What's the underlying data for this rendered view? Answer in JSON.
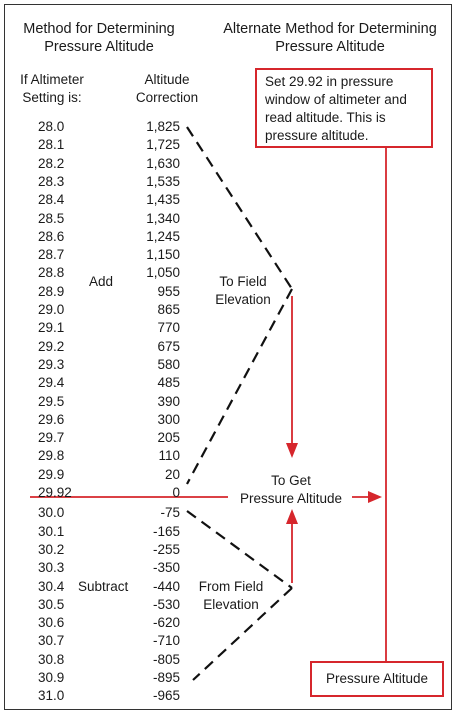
{
  "header": {
    "left_title_line1": "Method for Determining",
    "left_title_line2": "Pressure Altitude",
    "right_title_line1": "Alternate Method for Determining",
    "right_title_line2": "Pressure Altitude"
  },
  "columns": {
    "setting_line1": "If Altimeter",
    "setting_line2": "Setting is:",
    "correction_line1": "Altitude",
    "correction_line2": "Correction"
  },
  "rows": [
    {
      "setting": "28.0",
      "correction": "1,825"
    },
    {
      "setting": "28.1",
      "correction": "1,725"
    },
    {
      "setting": "28.2",
      "correction": "1,630"
    },
    {
      "setting": "28.3",
      "correction": "1,535"
    },
    {
      "setting": "28.4",
      "correction": "1,435"
    },
    {
      "setting": "28.5",
      "correction": "1,340"
    },
    {
      "setting": "28.6",
      "correction": "1,245"
    },
    {
      "setting": "28.7",
      "correction": "1,150"
    },
    {
      "setting": "28.8",
      "correction": "1,050"
    },
    {
      "setting": "28.9",
      "correction": "955"
    },
    {
      "setting": "29.0",
      "correction": "865"
    },
    {
      "setting": "29.1",
      "correction": "770"
    },
    {
      "setting": "29.2",
      "correction": "675"
    },
    {
      "setting": "29.3",
      "correction": "580"
    },
    {
      "setting": "29.4",
      "correction": "485"
    },
    {
      "setting": "29.5",
      "correction": "390"
    },
    {
      "setting": "29.6",
      "correction": "300"
    },
    {
      "setting": "29.7",
      "correction": "205"
    },
    {
      "setting": "29.8",
      "correction": "110"
    },
    {
      "setting": "29.9",
      "correction": "20"
    },
    {
      "setting": "29.92",
      "correction": "0"
    },
    {
      "setting": "30.0",
      "correction": "-75"
    },
    {
      "setting": "30.1",
      "correction": "-165"
    },
    {
      "setting": "30.2",
      "correction": "-255"
    },
    {
      "setting": "30.3",
      "correction": "-350"
    },
    {
      "setting": "30.4",
      "correction": "-440"
    },
    {
      "setting": "30.5",
      "correction": "-530"
    },
    {
      "setting": "30.6",
      "correction": "-620"
    },
    {
      "setting": "30.7",
      "correction": "-710"
    },
    {
      "setting": "30.8",
      "correction": "-805"
    },
    {
      "setting": "30.9",
      "correction": "-895"
    },
    {
      "setting": "31.0",
      "correction": "-965"
    }
  ],
  "labels": {
    "add": "Add",
    "subtract": "Subtract",
    "to_field_line1": "To Field",
    "to_field_line2": "Elevation",
    "from_field_line1": "From Field",
    "from_field_line2": "Elevation",
    "to_get_line1": "To Get",
    "to_get_line2": "Pressure Altitude"
  },
  "alternate_box": {
    "text": "Set 29.92 in pressure window of altimeter and read altitude. This is pressure altitude."
  },
  "result_box": {
    "text": "Pressure Altitude"
  },
  "colors": {
    "accent": "#d6262c",
    "line": "#111111"
  }
}
